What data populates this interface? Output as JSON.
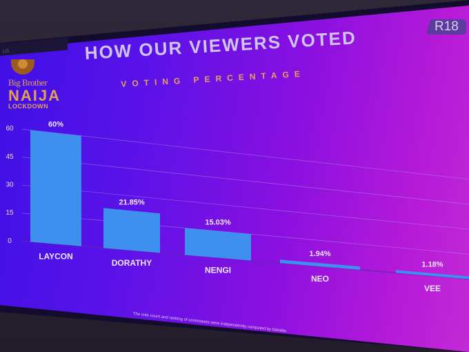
{
  "tv": {
    "brand_text": "LG",
    "rating_badge": "R18"
  },
  "logo": {
    "line1": "Big Brother",
    "line2": "NAIJA",
    "line3": "LOCKDOWN"
  },
  "footnote": "The vote count and ranking of contestants were independently computed by Deloitte.",
  "chart_data": {
    "type": "bar",
    "title": "HOW OUR VIEWERS VOTED",
    "subtitle": "VOTING PERCENTAGE",
    "xlabel": "",
    "ylabel": "",
    "categories": [
      "LAYCON",
      "DORATHY",
      "NENGI",
      "NEO",
      "VEE"
    ],
    "values": [
      60,
      21.85,
      15.03,
      1.94,
      1.18
    ],
    "data_labels": [
      "60%",
      "21.85%",
      "15.03%",
      "1.94%",
      "1.18%"
    ],
    "ylim": [
      0,
      60
    ],
    "yticks": [
      "0",
      "15",
      "30",
      "45",
      "60"
    ],
    "ytick_values": [
      0,
      15,
      30,
      45,
      60
    ],
    "grid": true,
    "colors": {
      "bar": "#3f8ff0",
      "grid": "#b49cf0",
      "screen_left": "#3d10e6",
      "screen_right": "#c22ad4",
      "title": "#cfc4ee",
      "subtitle": "#e7a25a"
    }
  }
}
